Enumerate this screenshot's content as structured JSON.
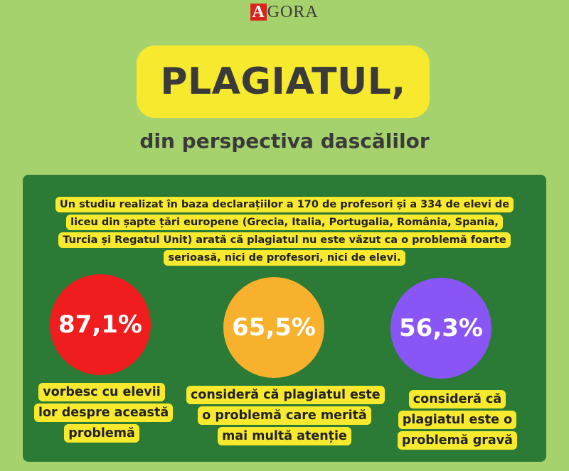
{
  "header": {
    "logo_letter": "A",
    "logo_rest": "GORA",
    "title": "PLAGIATUL,",
    "subtitle": "din perspectiva dascălilor"
  },
  "intro": "Un studiu realizat în baza declarațiilor a 170 de profesori și a 334 de elevi de liceu din șapte țări europene (Grecia, Italia, Portugalia, România, Spania, Turcia și Regatul Unit) arată că plagiatul nu este văzut ca o problemă foarte serioasă, nici de profesori, nici de elevi.",
  "stats": [
    {
      "value": "87,1%",
      "label": "vorbesc cu elevii lor despre această problemă",
      "color": "#ef1d1d"
    },
    {
      "value": "65,5%",
      "label": "consideră că plagiatul este o problemă care merită mai multă atenție",
      "color": "#f7b12c"
    },
    {
      "value": "56,3%",
      "label": "consideră că plagiatul este o problemă gravă",
      "color": "#8a55f5"
    }
  ],
  "colors": {
    "background": "#a6d26e",
    "panel": "#2b7a35",
    "highlight": "#f7ea2e",
    "logo_red": "#d8241d"
  }
}
